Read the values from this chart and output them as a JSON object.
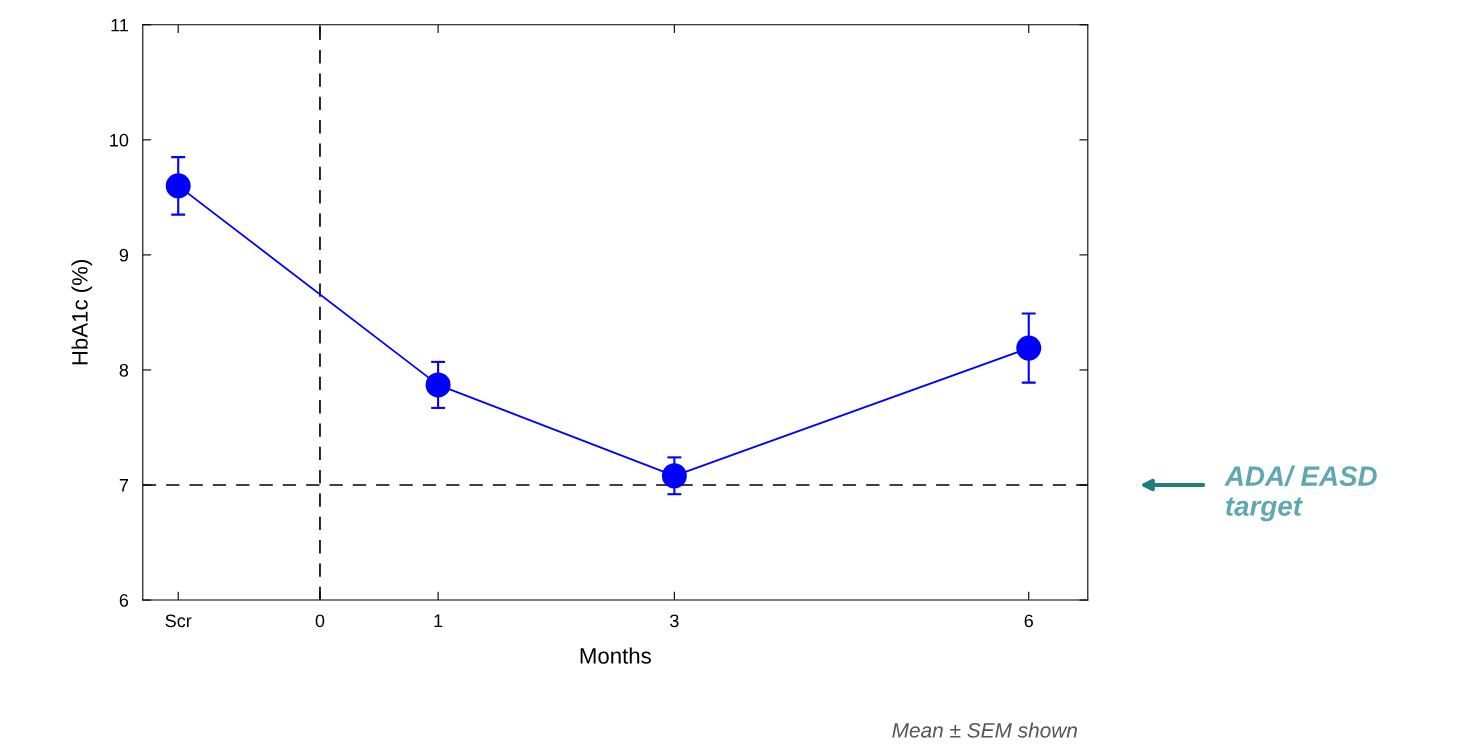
{
  "chart_data": {
    "type": "line",
    "xlabel": "Months",
    "ylabel": "HbA1c (%)",
    "x": [
      -1.2,
      1,
      3,
      6
    ],
    "series": [
      {
        "color": "#0000ff",
        "values": [
          9.6,
          7.87,
          7.08,
          8.19
        ],
        "errors": [
          0.25,
          0.2,
          0.16,
          0.3
        ]
      }
    ],
    "xlim": [
      -1.5,
      6.5
    ],
    "xticks": [
      {
        "value": -1.2,
        "label": "Scr"
      },
      0,
      1,
      3,
      6
    ],
    "ylim": [
      6,
      11
    ],
    "yticks": [
      6,
      7,
      8,
      9,
      10,
      11
    ],
    "marker": "circle",
    "line_style": "solid",
    "grid": false,
    "ref_lines": [
      {
        "axis": "y",
        "value": 7,
        "color": "#000000",
        "line_style": "dashed"
      },
      {
        "axis": "x",
        "value": 0,
        "color": "#000000",
        "line_style": "dashed"
      }
    ],
    "annotations": [
      "ADA/ EASD\ntarget",
      "Mean ± SEM shown"
    ]
  }
}
